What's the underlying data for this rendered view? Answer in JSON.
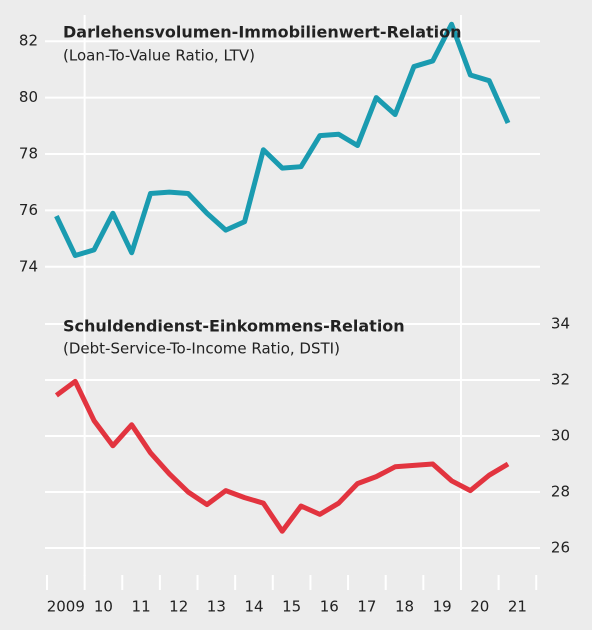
{
  "chart_data": [
    {
      "type": "line",
      "title": "Darlehensvolumen-Immobilienwert-Relation",
      "subtitle": "(Loan-To-Value Ratio, LTV)",
      "x": [
        2009.25,
        2009.75,
        2010.25,
        2010.75,
        2011.25,
        2011.75,
        2012.25,
        2012.75,
        2013.25,
        2013.75,
        2014.25,
        2014.75,
        2015.25,
        2015.75,
        2016.25,
        2016.75,
        2017.25,
        2017.75,
        2018.25,
        2018.75,
        2019.25,
        2019.75,
        2020.25,
        2020.75,
        2021.25
      ],
      "series": [
        {
          "name": "LTV",
          "color": "#1a9bb0",
          "values": [
            75.8,
            74.4,
            74.6,
            75.9,
            74.5,
            76.6,
            76.65,
            76.6,
            75.9,
            75.3,
            75.6,
            78.15,
            77.5,
            77.55,
            78.65,
            78.7,
            78.3,
            80.0,
            79.4,
            81.1,
            81.3,
            82.6,
            80.8,
            80.6,
            79.1
          ]
        }
      ],
      "xlim": [
        2009,
        2022.1
      ],
      "ylim": [
        73,
        83
      ],
      "yticks": [
        74,
        76,
        78,
        80,
        82
      ],
      "vgrid": [
        2010,
        2020
      ],
      "grid": true
    },
    {
      "type": "line",
      "title": "Schuldendienst-Einkommens-Relation",
      "subtitle": "(Debt-Service-To-Income Ratio, DSTI)",
      "x": [
        2009.25,
        2009.75,
        2010.25,
        2010.75,
        2011.25,
        2011.75,
        2012.25,
        2012.75,
        2013.25,
        2013.75,
        2014.25,
        2014.75,
        2015.25,
        2015.75,
        2016.25,
        2016.75,
        2017.25,
        2017.75,
        2018.25,
        2018.75,
        2019.25,
        2019.75,
        2020.25,
        2020.75,
        2021.25
      ],
      "series": [
        {
          "name": "DSTI",
          "color": "#e2343f",
          "values": [
            31.45,
            31.95,
            30.55,
            29.65,
            30.4,
            29.4,
            28.65,
            28.0,
            27.55,
            28.05,
            27.8,
            27.6,
            26.6,
            27.5,
            27.2,
            27.6,
            28.3,
            28.55,
            28.9,
            28.95,
            29.0,
            28.4,
            28.05,
            28.6,
            29.0
          ]
        }
      ],
      "xlim": [
        2009,
        2022.1
      ],
      "ylim": [
        25,
        35
      ],
      "yticks": [
        26,
        28,
        30,
        32,
        34
      ],
      "xticks": [
        {
          "value": 2009.5,
          "label": "2009"
        },
        {
          "value": 2010.5,
          "label": "10"
        },
        {
          "value": 2011.5,
          "label": "11"
        },
        {
          "value": 2012.5,
          "label": "12"
        },
        {
          "value": 2013.5,
          "label": "13"
        },
        {
          "value": 2014.5,
          "label": "14"
        },
        {
          "value": 2015.5,
          "label": "15"
        },
        {
          "value": 2016.5,
          "label": "16"
        },
        {
          "value": 2017.5,
          "label": "17"
        },
        {
          "value": 2018.5,
          "label": "18"
        },
        {
          "value": 2019.5,
          "label": "19"
        },
        {
          "value": 2020.5,
          "label": "20"
        },
        {
          "value": 2021.5,
          "label": "21"
        }
      ],
      "yaxis_side": "right",
      "grid": true
    }
  ]
}
